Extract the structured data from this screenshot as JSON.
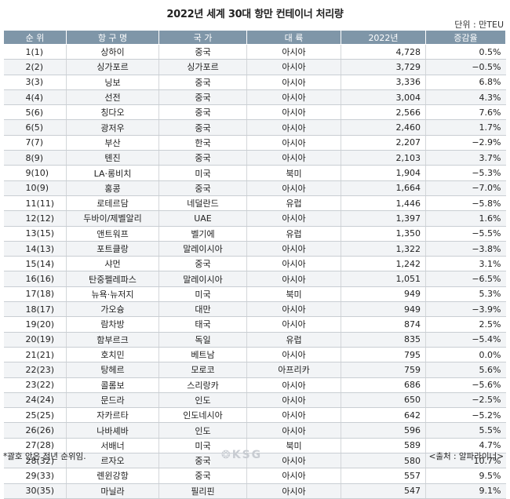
{
  "title": "2022년 세계 30대 항만 컨테이너 처리량",
  "unit": "단위 : 만TEU",
  "headers": [
    "순 위",
    "항 구 명",
    "국 가",
    "대 륙",
    "2022년",
    "증감율"
  ],
  "rows": [
    [
      "1(1)",
      "상하이",
      "중국",
      "아시아",
      "4,728",
      "0.5%"
    ],
    [
      "2(2)",
      "싱가포르",
      "싱가포르",
      "아시아",
      "3,729",
      "−0.5%"
    ],
    [
      "3(3)",
      "닝보",
      "중국",
      "아시아",
      "3,336",
      "6.8%"
    ],
    [
      "4(4)",
      "선전",
      "중국",
      "아시아",
      "3,004",
      "4.3%"
    ],
    [
      "5(6)",
      "칭다오",
      "중국",
      "아시아",
      "2,566",
      "7.6%"
    ],
    [
      "6(5)",
      "광저우",
      "중국",
      "아시아",
      "2,460",
      "1.7%"
    ],
    [
      "7(7)",
      "부산",
      "한국",
      "아시아",
      "2,207",
      "−2.9%"
    ],
    [
      "8(9)",
      "톈진",
      "중국",
      "아시아",
      "2,103",
      "3.7%"
    ],
    [
      "9(10)",
      "LA·롱비치",
      "미국",
      "북미",
      "1,904",
      "−5.3%"
    ],
    [
      "10(9)",
      "홍콩",
      "중국",
      "아시아",
      "1,664",
      "−7.0%"
    ],
    [
      "11(11)",
      "로테르담",
      "네덜란드",
      "유럽",
      "1,446",
      "−5.8%"
    ],
    [
      "12(12)",
      "두바이/제벨알리",
      "UAE",
      "아시아",
      "1,397",
      "1.6%"
    ],
    [
      "13(15)",
      "앤트워프",
      "벨기에",
      "유럽",
      "1,350",
      "−5.5%"
    ],
    [
      "14(13)",
      "포트클랑",
      "말레이시아",
      "아시아",
      "1,322",
      "−3.8%"
    ],
    [
      "15(14)",
      "샤먼",
      "중국",
      "아시아",
      "1,242",
      "3.1%"
    ],
    [
      "16(16)",
      "탄중펠레파스",
      "말레이시아",
      "아시아",
      "1,051",
      "−6.5%"
    ],
    [
      "17(18)",
      "뉴욕·뉴저지",
      "미국",
      "북미",
      "949",
      "5.3%"
    ],
    [
      "18(17)",
      "가오슝",
      "대만",
      "아시아",
      "949",
      "−3.9%"
    ],
    [
      "19(20)",
      "람차방",
      "태국",
      "아시아",
      "874",
      "2.5%"
    ],
    [
      "20(19)",
      "함부르크",
      "독일",
      "유럽",
      "835",
      "−5.4%"
    ],
    [
      "21(21)",
      "호치민",
      "베트남",
      "아시아",
      "795",
      "0.0%"
    ],
    [
      "22(23)",
      "탕헤르",
      "모로코",
      "아프리카",
      "759",
      "5.6%"
    ],
    [
      "23(22)",
      "콜롬보",
      "스리랑카",
      "아시아",
      "686",
      "−5.6%"
    ],
    [
      "24(24)",
      "문드라",
      "인도",
      "아시아",
      "650",
      "−2.5%"
    ],
    [
      "25(25)",
      "자카르타",
      "인도네시아",
      "아시아",
      "642",
      "−5.2%"
    ],
    [
      "26(26)",
      "나바셰바",
      "인도",
      "아시아",
      "596",
      "5.5%"
    ],
    [
      "27(28)",
      "서배너",
      "미국",
      "북미",
      "589",
      "4.7%"
    ],
    [
      "28(32)",
      "르자오",
      "중국",
      "아시아",
      "580",
      "10.7%"
    ],
    [
      "29(33)",
      "롄윈강항",
      "중국",
      "아시아",
      "557",
      "9.5%"
    ],
    [
      "30(35)",
      "마닐라",
      "필리핀",
      "아시아",
      "547",
      "9.1%"
    ]
  ],
  "footnote": "*괄호 안은 전년 순위임.",
  "source": "<출처 : 알파라이너>",
  "watermark": "KSG"
}
